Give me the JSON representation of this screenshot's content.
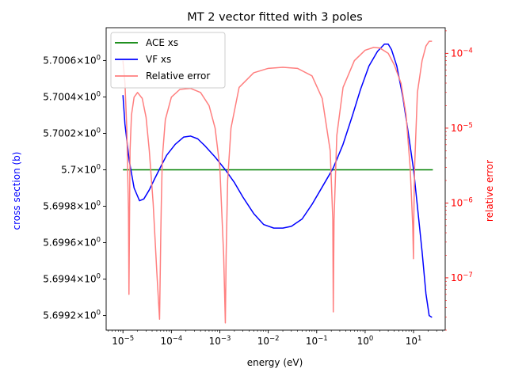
{
  "chart_data": {
    "type": "line",
    "title": "MT 2 vector fitted with 3 poles",
    "xlabel": "energy (eV)",
    "ylabel_left": "cross section (b)",
    "ylabel_right": "relative error",
    "x_scale": "log",
    "y_right_scale": "log",
    "xlim": [
      4.5e-06,
      45
    ],
    "ylim_left": [
      5.69912,
      5.70078
    ],
    "ylim_right": [
      2e-08,
      0.00022
    ],
    "grid": false,
    "legend_position": "top-left",
    "x_ticks": [
      {
        "value": 1e-05,
        "label": "10",
        "exp": "−5"
      },
      {
        "value": 0.0001,
        "label": "10",
        "exp": "−4"
      },
      {
        "value": 0.001,
        "label": "10",
        "exp": "−3"
      },
      {
        "value": 0.01,
        "label": "10",
        "exp": "−2"
      },
      {
        "value": 0.1,
        "label": "10",
        "exp": "−1"
      },
      {
        "value": 1,
        "label": "10",
        "exp": "0"
      },
      {
        "value": 10,
        "label": "10",
        "exp": "1"
      }
    ],
    "y_left_ticks": [
      {
        "value": 5.6992,
        "label": "5.6992",
        "mult": "10",
        "exp": "0"
      },
      {
        "value": 5.6994,
        "label": "5.6994",
        "mult": "10",
        "exp": "0"
      },
      {
        "value": 5.6996,
        "label": "5.6996",
        "mult": "10",
        "exp": "0"
      },
      {
        "value": 5.6998,
        "label": "5.6998",
        "mult": "10",
        "exp": "0"
      },
      {
        "value": 5.7,
        "label": "5.7",
        "mult": "10",
        "exp": "0"
      },
      {
        "value": 5.7002,
        "label": "5.7002",
        "mult": "10",
        "exp": "0"
      },
      {
        "value": 5.7004,
        "label": "5.7004",
        "mult": "10",
        "exp": "0"
      },
      {
        "value": 5.7006,
        "label": "5.7006",
        "mult": "10",
        "exp": "0"
      }
    ],
    "y_right_ticks": [
      {
        "value": 1e-07,
        "label": "10",
        "exp": "−7"
      },
      {
        "value": 1e-06,
        "label": "10",
        "exp": "−6"
      },
      {
        "value": 1e-05,
        "label": "10",
        "exp": "−5"
      },
      {
        "value": 0.0001,
        "label": "10",
        "exp": "−4"
      }
    ],
    "series": [
      {
        "name": "ACE xs",
        "color": "#008000",
        "axis": "left",
        "x": [
          1e-05,
          25
        ],
        "y": [
          5.7,
          5.7
        ]
      },
      {
        "name": "VF xs",
        "color": "#0000ff",
        "axis": "left",
        "x": [
          1e-05,
          1.1e-05,
          1.35e-05,
          1.7e-05,
          2.2e-05,
          2.7e-05,
          3.5e-05,
          4.5e-05,
          6.1e-05,
          8e-05,
          0.00012,
          0.00018,
          0.00025,
          0.00035,
          0.0005,
          0.0008,
          0.0013,
          0.002,
          0.003,
          0.005,
          0.008,
          0.013,
          0.02,
          0.03,
          0.05,
          0.08,
          0.12,
          0.22,
          0.35,
          0.55,
          0.8,
          1.2,
          1.8,
          2.5,
          3,
          3.5,
          4.5,
          6,
          8,
          10,
          12,
          15,
          18,
          21,
          24
        ],
        "y": [
          5.70041,
          5.70025,
          5.70005,
          5.6999,
          5.69983,
          5.69984,
          5.69989,
          5.69995,
          5.70002,
          5.70008,
          5.70014,
          5.70018,
          5.700185,
          5.70017,
          5.70013,
          5.70007,
          5.7,
          5.69993,
          5.69985,
          5.69976,
          5.6997,
          5.69968,
          5.69968,
          5.69969,
          5.69973,
          5.69981,
          5.69989,
          5.70001,
          5.70014,
          5.7003,
          5.70044,
          5.70057,
          5.70065,
          5.70069,
          5.70069,
          5.70066,
          5.70057,
          5.7004,
          5.70018,
          5.7,
          5.6998,
          5.69955,
          5.69932,
          5.6992,
          5.69919
        ]
      },
      {
        "name": "Relative error",
        "color": "#ff7f7f",
        "axis": "right",
        "x": [
          1e-05,
          1.1e-05,
          1.2e-05,
          1.3e-05,
          1.33e-05,
          1.36e-05,
          1.4e-05,
          1.5e-05,
          1.7e-05,
          2e-05,
          2.5e-05,
          3e-05,
          3.5e-05,
          4.2e-05,
          5e-05,
          5.7e-05,
          6.05e-05,
          6.2e-05,
          6.5e-05,
          7.5e-05,
          0.0001,
          0.00015,
          0.00025,
          0.0004,
          0.0006,
          0.0008,
          0.001,
          0.0012,
          0.0013,
          0.00135,
          0.00145,
          0.0017,
          0.0025,
          0.005,
          0.01,
          0.02,
          0.04,
          0.08,
          0.13,
          0.19,
          0.215,
          0.22,
          0.228,
          0.26,
          0.35,
          0.6,
          1.0,
          1.5,
          2,
          3,
          4,
          5.5,
          7,
          8.5,
          9.6,
          9.95,
          10.1,
          10.5,
          12,
          15,
          18,
          21,
          24
        ],
        "y": [
          8e-05,
          4e-05,
          1e-05,
          8e-07,
          6e-08,
          4e-07,
          5e-06,
          1.5e-05,
          2.6e-05,
          3e-05,
          2.5e-05,
          1.4e-05,
          5e-06,
          1e-06,
          1.2e-07,
          2.8e-08,
          4e-07,
          1e-06,
          4e-06,
          1.3e-05,
          2.6e-05,
          3.3e-05,
          3.4e-05,
          3e-05,
          2e-05,
          1e-05,
          3e-06,
          2e-07,
          2.5e-08,
          2e-07,
          2e-06,
          1e-05,
          3.5e-05,
          5.5e-05,
          6.3e-05,
          6.5e-05,
          6.3e-05,
          5e-05,
          2.5e-05,
          5e-06,
          6e-07,
          3.5e-08,
          6e-07,
          8e-06,
          3.5e-05,
          8e-05,
          0.00011,
          0.00012,
          0.000118,
          0.0001,
          7e-05,
          4e-05,
          1.5e-05,
          3e-06,
          5e-07,
          1.8e-07,
          6e-07,
          3e-06,
          3e-05,
          8e-05,
          0.000125,
          0.000145,
          0.000145
        ]
      }
    ]
  }
}
